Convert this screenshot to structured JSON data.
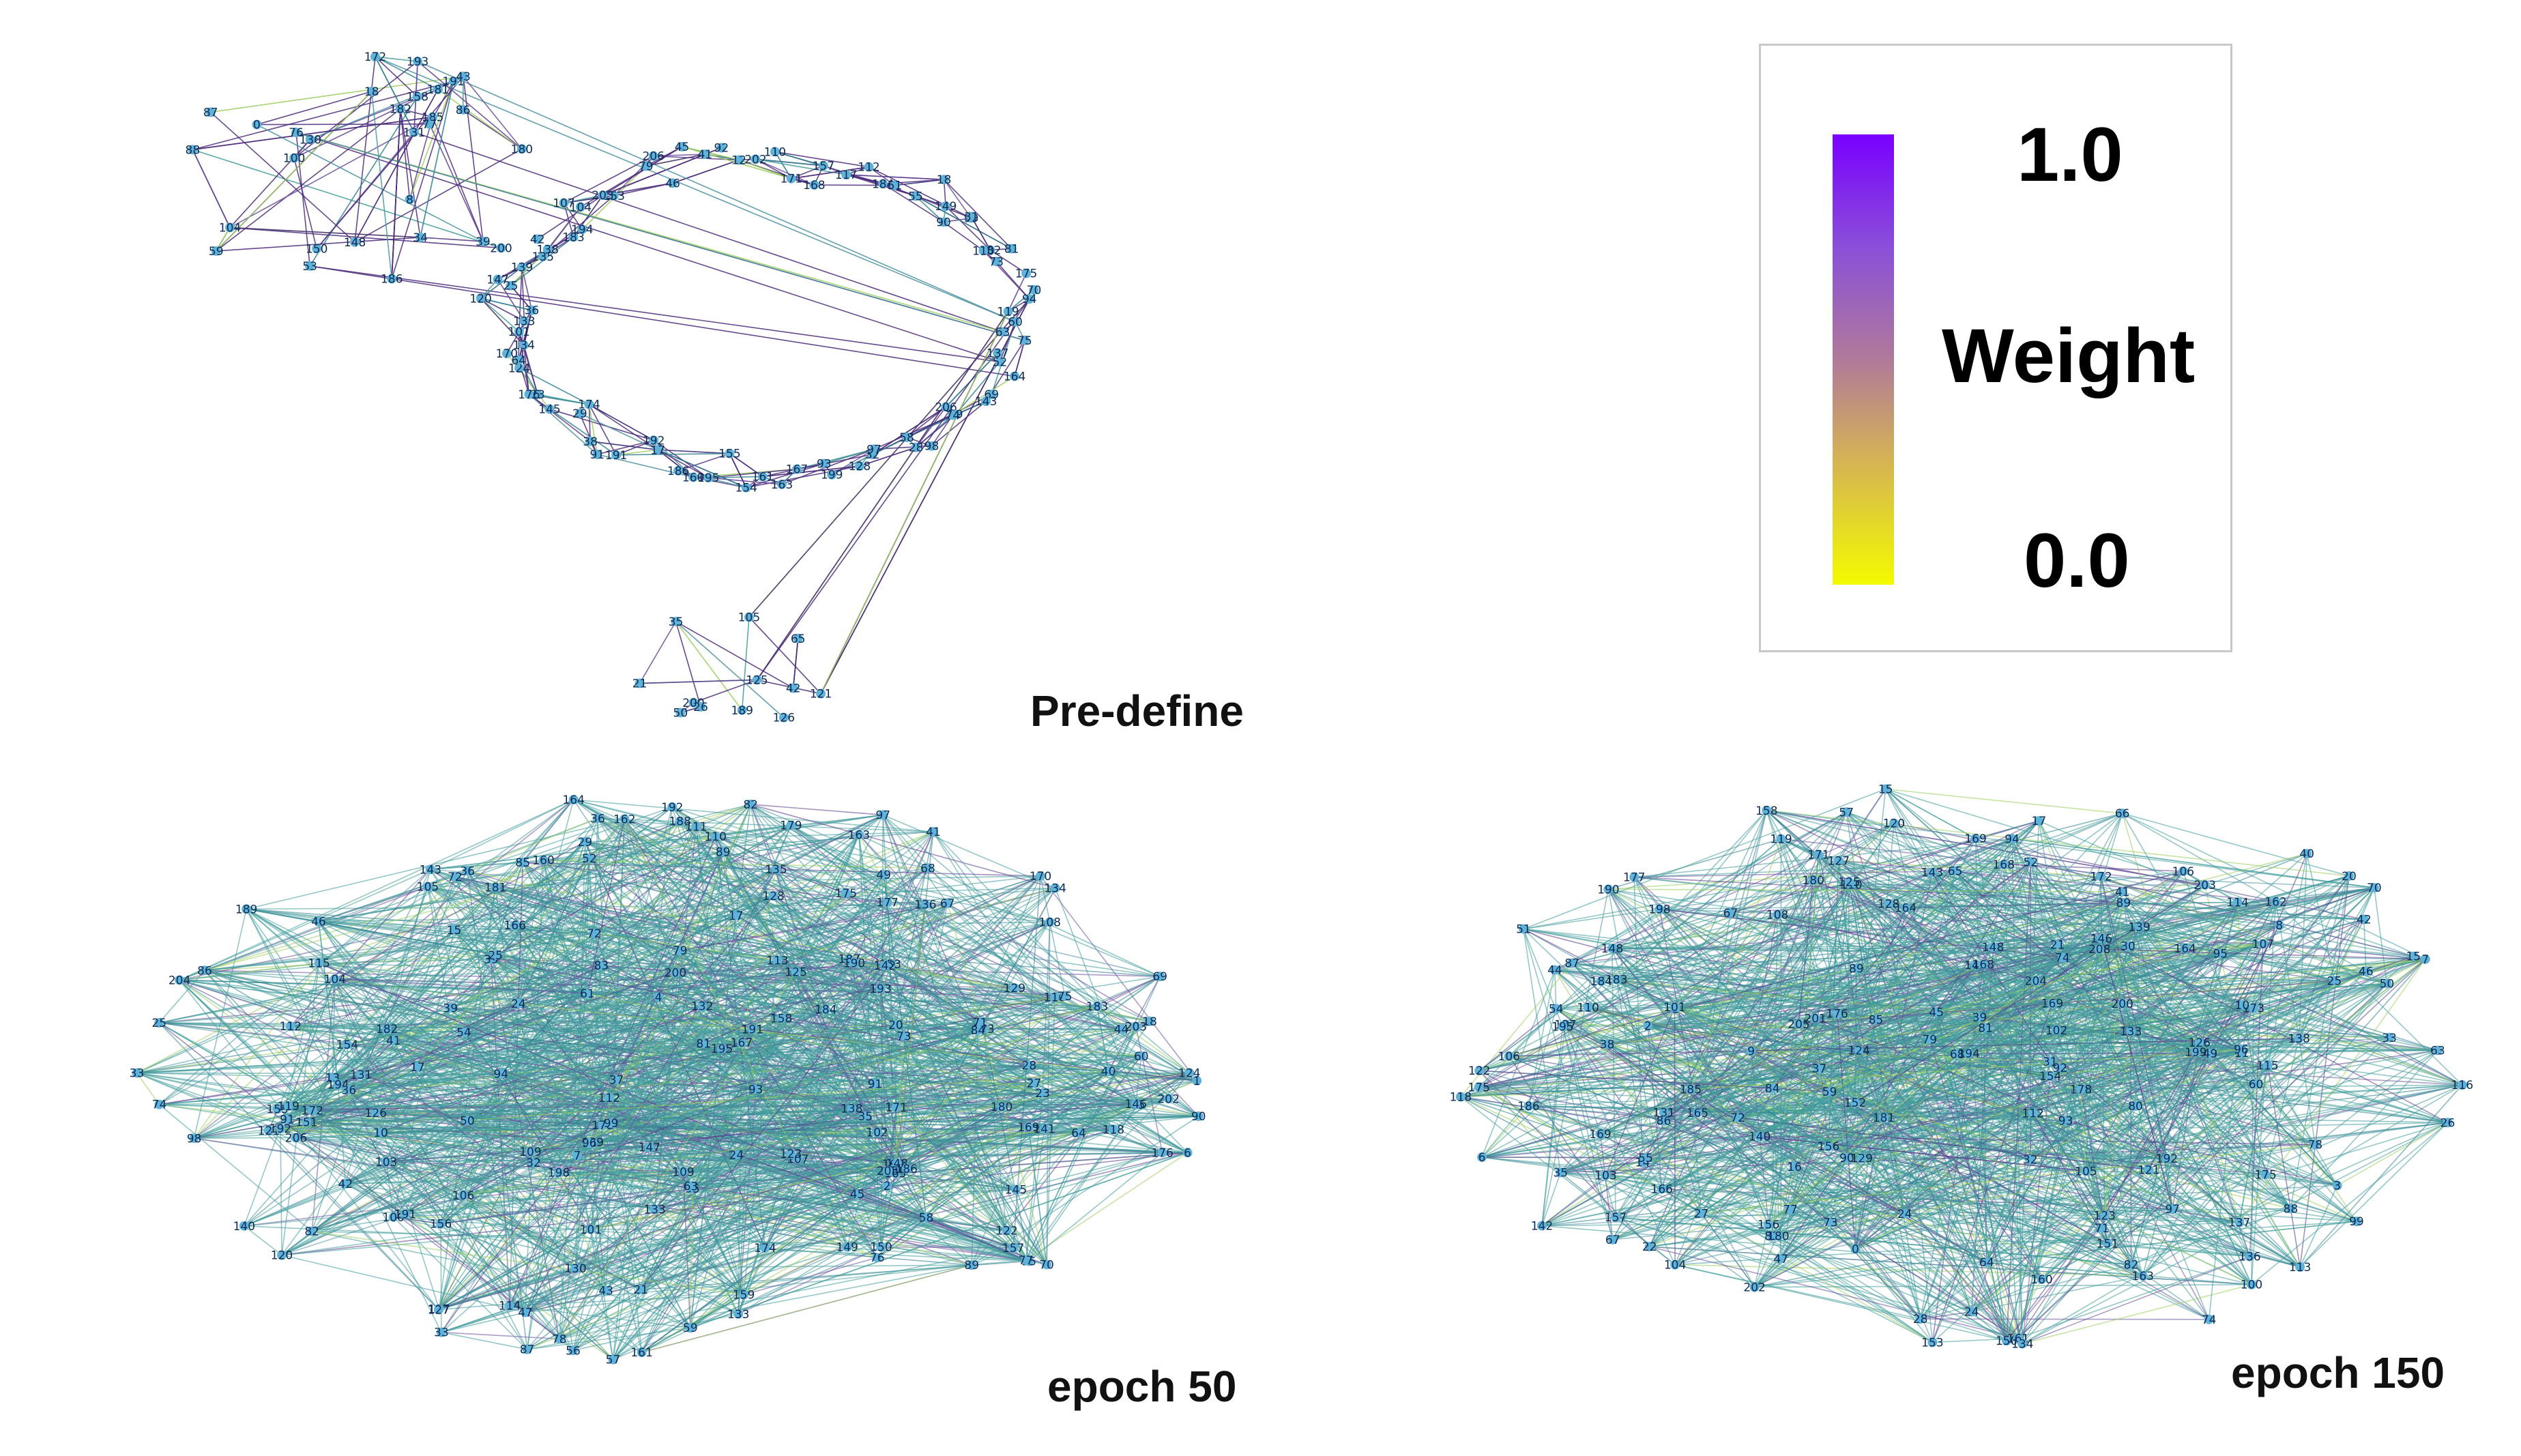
{
  "panels": [
    {
      "title": "Pre-define",
      "layout": "ring",
      "edge_color": "#4b2a7b",
      "accent": "#2b9b8c",
      "nodes": [
        "182",
        "186",
        "8",
        "59",
        "34",
        "185",
        "191",
        "18",
        "104",
        "39",
        "88",
        "77",
        "0",
        "200",
        "130",
        "43",
        "87",
        "100",
        "180",
        "181",
        "150",
        "86",
        "148",
        "193",
        "172",
        "131",
        "158",
        "76",
        "53",
        "60",
        "63",
        "75",
        "137",
        "52",
        "164",
        "69",
        "143",
        "206",
        "79",
        "74",
        "98",
        "58",
        "28",
        "32",
        "97",
        "128",
        "199",
        "93",
        "167",
        "163",
        "161",
        "154",
        "155",
        "195",
        "160",
        "186",
        "17",
        "192",
        "191",
        "91",
        "38",
        "174",
        "29",
        "145",
        "23",
        "176",
        "124",
        "64",
        "170",
        "134",
        "101",
        "133",
        "36",
        "120",
        "25",
        "147",
        "139",
        "138",
        "135",
        "42",
        "183",
        "194",
        "107",
        "104",
        "153",
        "203",
        "79",
        "206",
        "46",
        "45",
        "41",
        "92",
        "12",
        "202",
        "110",
        "171",
        "168",
        "157",
        "117",
        "112",
        "184",
        "51",
        "55",
        "18",
        "149",
        "99",
        "90",
        "31",
        "81",
        "182",
        "110",
        "73",
        "175",
        "70",
        "94",
        "119",
        "125",
        "105",
        "121",
        "21",
        "200",
        "126",
        "189",
        "35",
        "50",
        "65",
        "26",
        "42"
      ]
    },
    {
      "title": "epoch 50",
      "layout": "ellipse",
      "edge_color": "#3f9a9a",
      "accent": "#2b9b8c",
      "nodes": [
        "106",
        "200",
        "165",
        "35",
        "68",
        "103",
        "70",
        "109",
        "61",
        "153",
        "59",
        "178",
        "192",
        "64",
        "21",
        "120",
        "121",
        "23",
        "170",
        "102",
        "107",
        "45",
        "44",
        "171",
        "85",
        "108",
        "202",
        "28",
        "110",
        "183",
        "2",
        "78",
        "50",
        "40",
        "126",
        "98",
        "105",
        "36",
        "66",
        "55",
        "203",
        "173",
        "10",
        "90",
        "132",
        "83",
        "189",
        "129",
        "58",
        "147",
        "79",
        "95",
        "179",
        "122",
        "176",
        "156",
        "18",
        "89",
        "151",
        "125",
        "165",
        "84",
        "91",
        "46",
        "7",
        "1",
        "177",
        "27",
        "99",
        "167",
        "13",
        "32",
        "82",
        "49",
        "20",
        "143",
        "204",
        "25",
        "87",
        "41",
        "148",
        "194",
        "100",
        "72",
        "77",
        "33",
        "24",
        "29",
        "56",
        "41",
        "71",
        "118",
        "135",
        "123",
        "114",
        "169",
        "184",
        "67",
        "65",
        "116",
        "166",
        "6",
        "36",
        "205",
        "181",
        "86",
        "191",
        "60",
        "180",
        "141",
        "52",
        "76",
        "139",
        "150",
        "193",
        "39",
        "36",
        "192",
        "182",
        "24",
        "17",
        "96",
        "37",
        "115",
        "112",
        "130",
        "101",
        "82",
        "73",
        "47",
        "174",
        "75",
        "164",
        "89",
        "161",
        "195",
        "145",
        "136",
        "206",
        "43",
        "69",
        "113",
        "72",
        "187",
        "91",
        "104",
        "162",
        "138",
        "188",
        "112",
        "54",
        "63",
        "137",
        "160",
        "163",
        "172",
        "39",
        "74",
        "128",
        "186",
        "140",
        "190",
        "134",
        "81",
        "131",
        "158",
        "17",
        "33",
        "111",
        "175",
        "93",
        "142",
        "155",
        "146",
        "191",
        "133",
        "154",
        "94",
        "157",
        "119",
        "42",
        "127",
        "4",
        "15",
        "109",
        "198",
        "97",
        "57",
        "159",
        "149",
        "124",
        "25",
        "133"
      ]
    },
    {
      "title": "epoch 150",
      "layout": "ellipse",
      "edge_color": "#3f9a9a",
      "accent": "#3a5fbf",
      "nodes": [
        "28",
        "183",
        "64",
        "79",
        "2",
        "122",
        "40",
        "70",
        "176",
        "88",
        "9",
        "84",
        "32",
        "85",
        "20",
        "201",
        "68",
        "103",
        "78",
        "120",
        "169",
        "25",
        "204",
        "87",
        "41",
        "95",
        "151",
        "89",
        "102",
        "14",
        "105",
        "92",
        "107",
        "44",
        "90",
        "178",
        "185",
        "49",
        "110",
        "108",
        "129",
        "121",
        "22",
        "77",
        "203",
        "66",
        "45",
        "106",
        "59",
        "83",
        "171",
        "173",
        "8",
        "35",
        "21",
        "50",
        "126",
        "180",
        "100",
        "125",
        "148",
        "165",
        "99",
        "1",
        "177",
        "153",
        "118",
        "200",
        "152",
        "139",
        "202",
        "37",
        "156",
        "199",
        "51",
        "184",
        "67",
        "123",
        "7",
        "27",
        "169",
        "168",
        "10",
        "38",
        "16",
        "24",
        "31",
        "11",
        "65",
        "55",
        "166",
        "46",
        "71",
        "15",
        "30",
        "194",
        "143",
        "60",
        "52",
        "47",
        "175",
        "150",
        "186",
        "160",
        "24",
        "80",
        "205",
        "89",
        "116",
        "114",
        "115",
        "190",
        "164",
        "106",
        "73",
        "74",
        "192",
        "145",
        "136",
        "0",
        "96",
        "101",
        "180",
        "3",
        "33",
        "82",
        "208",
        "127",
        "187",
        "161",
        "195",
        "104",
        "168",
        "17",
        "74",
        "175",
        "86",
        "181",
        "142",
        "54",
        "148",
        "42",
        "138",
        "93",
        "140",
        "6",
        "124",
        "163",
        "162",
        "128",
        "198",
        "97",
        "119",
        "112",
        "113",
        "39",
        "72",
        "81",
        "94",
        "157",
        "110",
        "134",
        "154",
        "57",
        "133",
        "26",
        "164",
        "67",
        "172",
        "137",
        "169",
        "146",
        "63",
        "131",
        "156",
        "158",
        "15"
      ]
    }
  ],
  "legend": {
    "label": "Weight",
    "max_text": "1.0",
    "min_text": "0.0",
    "colors": [
      "#7a00ff",
      "#b07a9a",
      "#f4fb00"
    ]
  }
}
